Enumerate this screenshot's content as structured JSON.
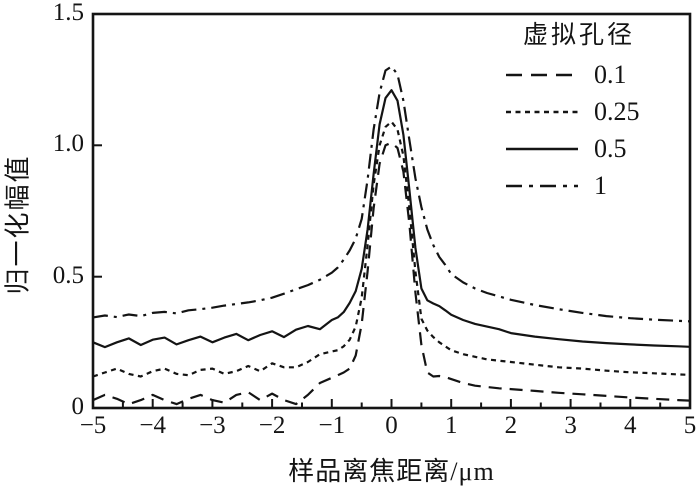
{
  "figure": {
    "background": "#ffffff",
    "line_color": "#141414"
  },
  "chart_data": {
    "type": "line",
    "title": "",
    "xlabel": "样品离焦距离/μm",
    "ylabel": "归一化幅值",
    "xlim": [
      -5,
      5
    ],
    "ylim": [
      0,
      1.5
    ],
    "grid": false,
    "x_ticks": [
      -5,
      -4,
      -3,
      -2,
      -1,
      0,
      1,
      2,
      3,
      4,
      5
    ],
    "x_tick_labels": [
      "−5",
      "−4",
      "−3",
      "−2",
      "−1",
      "0",
      "1",
      "2",
      "3",
      "4",
      "5"
    ],
    "x_minor_ticks": [
      -4.5,
      -3.5,
      -2.5,
      -1.5,
      -0.5,
      0.5,
      1.5,
      2.5,
      3.5,
      4.5
    ],
    "y_ticks": [
      0,
      0.5,
      1.0,
      1.5
    ],
    "y_tick_labels": [
      "0",
      "0.5",
      "1.0",
      "1.5"
    ],
    "legend": {
      "title": "虚拟孔径",
      "position": "upper right"
    },
    "x": [
      -5,
      -4.8,
      -4.6,
      -4.4,
      -4.2,
      -4,
      -3.8,
      -3.6,
      -3.4,
      -3.2,
      -3,
      -2.8,
      -2.6,
      -2.4,
      -2.2,
      -2,
      -1.8,
      -1.6,
      -1.4,
      -1.2,
      -1,
      -0.9,
      -0.8,
      -0.7,
      -0.6,
      -0.5,
      -0.4,
      -0.3,
      -0.2,
      -0.1,
      0,
      0.1,
      0.2,
      0.3,
      0.4,
      0.5,
      0.6,
      0.7,
      0.8,
      0.9,
      1,
      1.2,
      1.4,
      1.6,
      1.8,
      2,
      2.4,
      2.8,
      3.2,
      3.6,
      4,
      4.4,
      4.8,
      5
    ],
    "series": [
      {
        "label": "0.1",
        "line_style": "long-dash",
        "dash": [
          13,
          8
        ],
        "peak": 1.01,
        "values": [
          0.03,
          0.05,
          0.035,
          0.015,
          0.03,
          0.05,
          0.03,
          0.015,
          0.035,
          0.05,
          0.03,
          0.02,
          0.05,
          0.06,
          0.03,
          0.055,
          0.03,
          0.015,
          0.05,
          0.095,
          0.115,
          0.125,
          0.135,
          0.15,
          0.2,
          0.32,
          0.52,
          0.76,
          0.93,
          1.0,
          1.01,
          0.99,
          0.9,
          0.7,
          0.44,
          0.24,
          0.135,
          0.12,
          0.122,
          0.118,
          0.11,
          0.095,
          0.085,
          0.08,
          0.075,
          0.072,
          0.065,
          0.058,
          0.052,
          0.046,
          0.04,
          0.035,
          0.03,
          0.028
        ]
      },
      {
        "label": "0.25",
        "line_style": "short-dash",
        "dash": [
          5,
          4.5
        ],
        "peak": 1.09,
        "values": [
          0.12,
          0.135,
          0.15,
          0.13,
          0.12,
          0.14,
          0.15,
          0.13,
          0.125,
          0.145,
          0.15,
          0.13,
          0.14,
          0.16,
          0.14,
          0.17,
          0.155,
          0.155,
          0.175,
          0.205,
          0.215,
          0.22,
          0.235,
          0.26,
          0.31,
          0.42,
          0.62,
          0.85,
          1.0,
          1.07,
          1.09,
          1.06,
          0.96,
          0.76,
          0.52,
          0.34,
          0.295,
          0.27,
          0.25,
          0.235,
          0.22,
          0.205,
          0.195,
          0.185,
          0.18,
          0.175,
          0.165,
          0.155,
          0.15,
          0.142,
          0.136,
          0.132,
          0.128,
          0.126
        ]
      },
      {
        "label": "0.5",
        "line_style": "solid",
        "dash": [],
        "peak": 1.21,
        "values": [
          0.25,
          0.232,
          0.25,
          0.265,
          0.24,
          0.26,
          0.268,
          0.242,
          0.258,
          0.272,
          0.25,
          0.268,
          0.282,
          0.258,
          0.278,
          0.292,
          0.27,
          0.298,
          0.312,
          0.3,
          0.335,
          0.345,
          0.365,
          0.4,
          0.445,
          0.53,
          0.68,
          0.89,
          1.08,
          1.18,
          1.21,
          1.17,
          1.04,
          0.83,
          0.61,
          0.455,
          0.41,
          0.398,
          0.388,
          0.372,
          0.355,
          0.335,
          0.32,
          0.31,
          0.3,
          0.285,
          0.272,
          0.262,
          0.253,
          0.247,
          0.242,
          0.238,
          0.235,
          0.233
        ]
      },
      {
        "label": "1",
        "line_style": "dash-dot",
        "dash": [
          15,
          6,
          3,
          6
        ],
        "peak": 1.3,
        "values": [
          0.345,
          0.352,
          0.346,
          0.356,
          0.35,
          0.362,
          0.366,
          0.36,
          0.372,
          0.376,
          0.382,
          0.39,
          0.396,
          0.402,
          0.41,
          0.42,
          0.435,
          0.452,
          0.468,
          0.488,
          0.515,
          0.535,
          0.565,
          0.6,
          0.645,
          0.72,
          0.87,
          1.06,
          1.2,
          1.285,
          1.3,
          1.27,
          1.17,
          1.02,
          0.875,
          0.765,
          0.68,
          0.62,
          0.575,
          0.545,
          0.51,
          0.478,
          0.455,
          0.438,
          0.425,
          0.412,
          0.392,
          0.376,
          0.362,
          0.35,
          0.342,
          0.336,
          0.332,
          0.33
        ]
      }
    ]
  }
}
